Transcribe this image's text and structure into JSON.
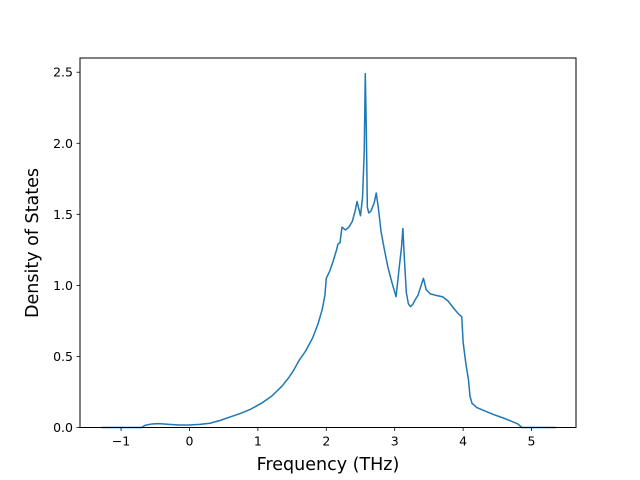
{
  "chart_data": {
    "type": "line",
    "title": "",
    "xlabel": "Frequency (THz)",
    "ylabel": "Density of States",
    "xlim": [
      -1.6,
      5.65
    ],
    "ylim": [
      0,
      2.6
    ],
    "xticks": [
      {
        "value": -1,
        "label": "−1"
      },
      {
        "value": 0,
        "label": "0"
      },
      {
        "value": 1,
        "label": "1"
      },
      {
        "value": 2,
        "label": "2"
      },
      {
        "value": 3,
        "label": "3"
      },
      {
        "value": 4,
        "label": "4"
      },
      {
        "value": 5,
        "label": "5"
      }
    ],
    "yticks": [
      {
        "value": 0.0,
        "label": "0.0"
      },
      {
        "value": 0.5,
        "label": "0.5"
      },
      {
        "value": 1.0,
        "label": "1.0"
      },
      {
        "value": 1.5,
        "label": "1.5"
      },
      {
        "value": 2.0,
        "label": "2.0"
      },
      {
        "value": 2.5,
        "label": "2.5"
      }
    ],
    "grid": false,
    "line_color": "#1f77b4",
    "series": [
      {
        "points": [
          [
            -1.28,
            0.0
          ],
          [
            -0.7,
            0.0
          ],
          [
            -0.65,
            0.015
          ],
          [
            -0.55,
            0.025
          ],
          [
            -0.45,
            0.027
          ],
          [
            -0.3,
            0.022
          ],
          [
            -0.15,
            0.018
          ],
          [
            0.0,
            0.018
          ],
          [
            0.15,
            0.022
          ],
          [
            0.3,
            0.03
          ],
          [
            0.45,
            0.05
          ],
          [
            0.6,
            0.075
          ],
          [
            0.75,
            0.1
          ],
          [
            0.9,
            0.13
          ],
          [
            1.05,
            0.17
          ],
          [
            1.2,
            0.22
          ],
          [
            1.35,
            0.29
          ],
          [
            1.45,
            0.35
          ],
          [
            1.52,
            0.4
          ],
          [
            1.6,
            0.47
          ],
          [
            1.7,
            0.54
          ],
          [
            1.8,
            0.63
          ],
          [
            1.88,
            0.73
          ],
          [
            1.94,
            0.83
          ],
          [
            1.98,
            0.93
          ],
          [
            2.0,
            1.05
          ],
          [
            2.05,
            1.1
          ],
          [
            2.1,
            1.17
          ],
          [
            2.15,
            1.25
          ],
          [
            2.17,
            1.29
          ],
          [
            2.2,
            1.3
          ],
          [
            2.23,
            1.41
          ],
          [
            2.28,
            1.39
          ],
          [
            2.33,
            1.41
          ],
          [
            2.38,
            1.45
          ],
          [
            2.42,
            1.52
          ],
          [
            2.45,
            1.59
          ],
          [
            2.48,
            1.53
          ],
          [
            2.5,
            1.49
          ],
          [
            2.53,
            1.62
          ],
          [
            2.555,
            1.95
          ],
          [
            2.57,
            2.49
          ],
          [
            2.585,
            2.1
          ],
          [
            2.6,
            1.55
          ],
          [
            2.62,
            1.51
          ],
          [
            2.65,
            1.52
          ],
          [
            2.7,
            1.58
          ],
          [
            2.73,
            1.65
          ],
          [
            2.76,
            1.55
          ],
          [
            2.8,
            1.38
          ],
          [
            2.85,
            1.25
          ],
          [
            2.9,
            1.13
          ],
          [
            2.96,
            1.02
          ],
          [
            3.02,
            0.92
          ],
          [
            3.06,
            1.1
          ],
          [
            3.1,
            1.27
          ],
          [
            3.12,
            1.4
          ],
          [
            3.14,
            1.2
          ],
          [
            3.17,
            0.95
          ],
          [
            3.2,
            0.87
          ],
          [
            3.23,
            0.85
          ],
          [
            3.27,
            0.87
          ],
          [
            3.3,
            0.9
          ],
          [
            3.34,
            0.93
          ],
          [
            3.38,
            0.99
          ],
          [
            3.42,
            1.05
          ],
          [
            3.46,
            0.97
          ],
          [
            3.52,
            0.94
          ],
          [
            3.6,
            0.93
          ],
          [
            3.7,
            0.92
          ],
          [
            3.78,
            0.89
          ],
          [
            3.86,
            0.84
          ],
          [
            3.93,
            0.8
          ],
          [
            3.98,
            0.78
          ],
          [
            4.0,
            0.6
          ],
          [
            4.04,
            0.45
          ],
          [
            4.08,
            0.33
          ],
          [
            4.1,
            0.22
          ],
          [
            4.13,
            0.17
          ],
          [
            4.2,
            0.14
          ],
          [
            4.3,
            0.12
          ],
          [
            4.45,
            0.09
          ],
          [
            4.6,
            0.065
          ],
          [
            4.7,
            0.045
          ],
          [
            4.8,
            0.025
          ],
          [
            4.86,
            0.0
          ],
          [
            5.35,
            0.0
          ]
        ]
      }
    ]
  }
}
